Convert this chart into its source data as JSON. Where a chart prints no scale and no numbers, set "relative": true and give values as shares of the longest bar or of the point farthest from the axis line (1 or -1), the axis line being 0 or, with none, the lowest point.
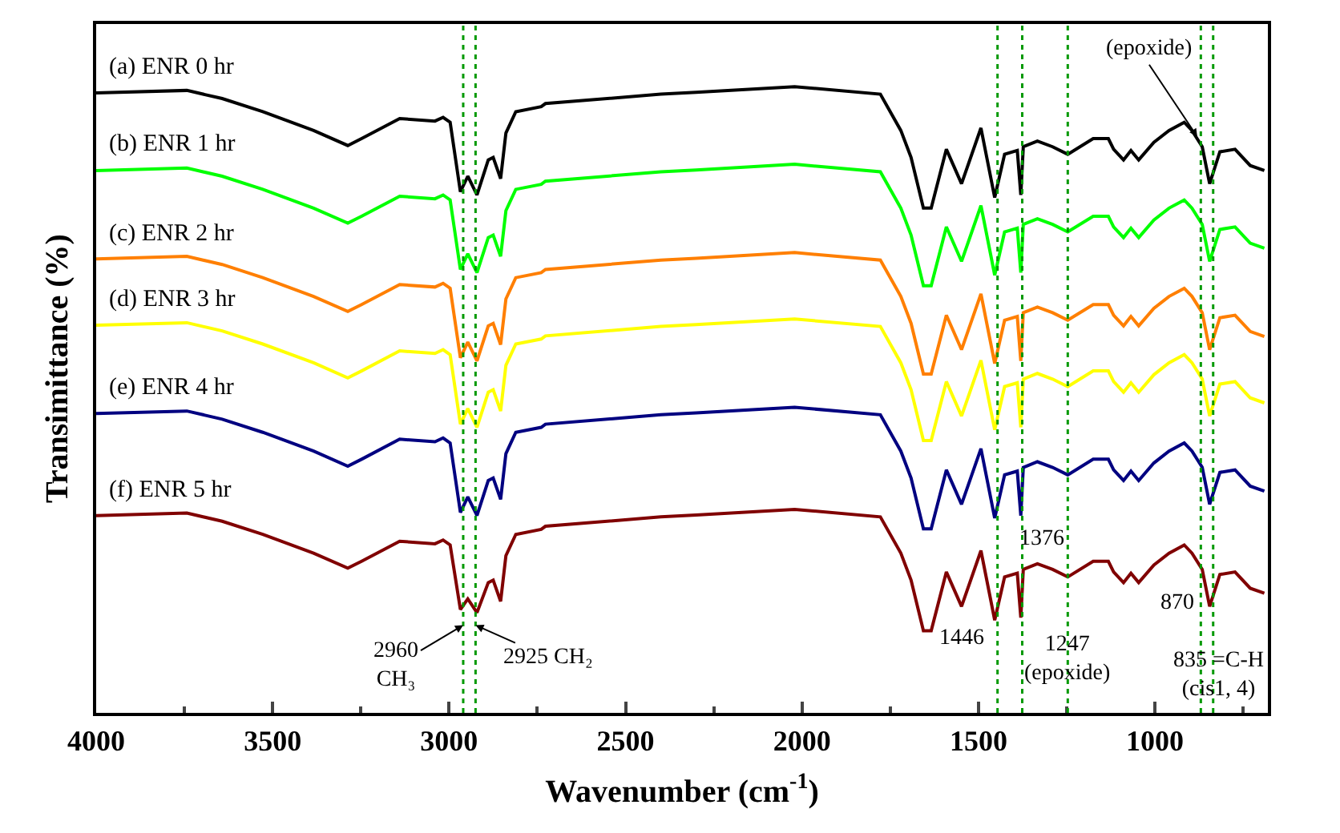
{
  "chart_data": {
    "type": "line",
    "relative": true,
    "xlabel": "Wavenumber (cm$^{-1}$)",
    "ylabel": "Transimittance (%)",
    "x": [
      4000,
      3743,
      3643,
      3528,
      3384,
      3287,
      3248,
      3140,
      3040,
      3017,
      2997,
      2968,
      2947,
      2921,
      2889,
      2875,
      2854,
      2839,
      2811,
      2739,
      2727,
      2400,
      2300,
      2021,
      1778,
      1720,
      1691,
      1656,
      1634,
      1591,
      1548,
      1493,
      1454,
      1426,
      1390,
      1380,
      1373,
      1333,
      1290,
      1247,
      1175,
      1132,
      1117,
      1089,
      1068,
      1046,
      1003,
      960,
      917,
      895,
      866,
      845,
      816,
      773,
      730,
      690
    ],
    "xlim": [
      4000,
      680
    ],
    "xticks": [
      4000,
      {
        "value": 3750,
        "label": null
      },
      3500,
      {
        "value": 3250,
        "label": null
      },
      3000,
      {
        "value": 2750,
        "label": null
      },
      2500,
      {
        "value": 2250,
        "label": null
      },
      2000,
      {
        "value": 1750,
        "label": null
      },
      1500,
      {
        "value": 1250,
        "label": null
      },
      1000,
      {
        "value": 750,
        "label": null
      }
    ],
    "legend": false,
    "line_style": "solid",
    "series": [
      {
        "name": "(a) ENR 0 hr",
        "color": "#000000",
        "values": [
          0.99,
          0.994,
          0.981,
          0.96,
          0.93,
          0.906,
          0.917,
          0.949,
          0.945,
          0.951,
          0.943,
          0.832,
          0.857,
          0.827,
          0.883,
          0.887,
          0.853,
          0.926,
          0.96,
          0.968,
          0.973,
          0.988,
          0.991,
          1.0,
          0.988,
          0.93,
          0.887,
          0.806,
          0.806,
          0.9,
          0.845,
          0.934,
          0.823,
          0.892,
          0.898,
          0.827,
          0.904,
          0.913,
          0.904,
          0.892,
          0.917,
          0.917,
          0.9,
          0.883,
          0.898,
          0.883,
          0.911,
          0.93,
          0.943,
          0.93,
          0.904,
          0.845,
          0.896,
          0.9,
          0.874,
          0.866
        ]
      },
      {
        "name": "(b) ENR 1 hr",
        "color": "#00ff00",
        "values": [
          0.866,
          0.87,
          0.857,
          0.836,
          0.806,
          0.782,
          0.793,
          0.825,
          0.821,
          0.827,
          0.819,
          0.708,
          0.733,
          0.703,
          0.759,
          0.763,
          0.729,
          0.802,
          0.836,
          0.844,
          0.849,
          0.864,
          0.867,
          0.876,
          0.864,
          0.806,
          0.763,
          0.682,
          0.682,
          0.776,
          0.721,
          0.81,
          0.699,
          0.768,
          0.774,
          0.703,
          0.78,
          0.789,
          0.78,
          0.768,
          0.793,
          0.793,
          0.776,
          0.759,
          0.774,
          0.759,
          0.787,
          0.806,
          0.819,
          0.806,
          0.78,
          0.721,
          0.772,
          0.776,
          0.75,
          0.742
        ]
      },
      {
        "name": "(c) ENR 2 hr",
        "color": "#ff7f00",
        "values": [
          0.725,
          0.729,
          0.716,
          0.695,
          0.665,
          0.641,
          0.652,
          0.684,
          0.68,
          0.686,
          0.678,
          0.567,
          0.592,
          0.562,
          0.618,
          0.622,
          0.588,
          0.661,
          0.695,
          0.703,
          0.708,
          0.723,
          0.726,
          0.735,
          0.723,
          0.665,
          0.622,
          0.541,
          0.541,
          0.635,
          0.58,
          0.669,
          0.558,
          0.627,
          0.633,
          0.562,
          0.639,
          0.648,
          0.639,
          0.627,
          0.652,
          0.652,
          0.635,
          0.618,
          0.633,
          0.618,
          0.646,
          0.665,
          0.678,
          0.665,
          0.639,
          0.58,
          0.631,
          0.635,
          0.609,
          0.601
        ]
      },
      {
        "name": "(d) ENR 3 hr",
        "color": "#ffff00",
        "values": [
          0.619,
          0.623,
          0.61,
          0.589,
          0.559,
          0.535,
          0.546,
          0.578,
          0.574,
          0.58,
          0.572,
          0.461,
          0.486,
          0.456,
          0.512,
          0.516,
          0.482,
          0.555,
          0.589,
          0.597,
          0.602,
          0.617,
          0.62,
          0.629,
          0.617,
          0.559,
          0.516,
          0.435,
          0.435,
          0.529,
          0.474,
          0.563,
          0.452,
          0.521,
          0.527,
          0.456,
          0.533,
          0.542,
          0.533,
          0.521,
          0.546,
          0.546,
          0.529,
          0.512,
          0.527,
          0.512,
          0.54,
          0.559,
          0.572,
          0.559,
          0.533,
          0.474,
          0.525,
          0.529,
          0.503,
          0.495
        ]
      },
      {
        "name": "(e) ENR 4 hr",
        "color": "#000080",
        "values": [
          0.478,
          0.482,
          0.469,
          0.448,
          0.418,
          0.394,
          0.405,
          0.437,
          0.433,
          0.439,
          0.431,
          0.32,
          0.345,
          0.315,
          0.371,
          0.375,
          0.341,
          0.414,
          0.448,
          0.456,
          0.461,
          0.476,
          0.479,
          0.488,
          0.476,
          0.418,
          0.375,
          0.294,
          0.294,
          0.388,
          0.333,
          0.422,
          0.311,
          0.38,
          0.386,
          0.315,
          0.392,
          0.401,
          0.392,
          0.38,
          0.405,
          0.405,
          0.388,
          0.371,
          0.386,
          0.371,
          0.399,
          0.418,
          0.431,
          0.418,
          0.392,
          0.333,
          0.384,
          0.388,
          0.362,
          0.354
        ]
      },
      {
        "name": "(f) ENR 5 hr",
        "color": "#800000",
        "values": [
          0.315,
          0.319,
          0.306,
          0.285,
          0.255,
          0.231,
          0.242,
          0.274,
          0.27,
          0.276,
          0.268,
          0.165,
          0.182,
          0.16,
          0.208,
          0.212,
          0.178,
          0.251,
          0.285,
          0.293,
          0.298,
          0.313,
          0.316,
          0.325,
          0.313,
          0.255,
          0.212,
          0.131,
          0.131,
          0.225,
          0.17,
          0.259,
          0.148,
          0.217,
          0.223,
          0.152,
          0.229,
          0.238,
          0.229,
          0.217,
          0.242,
          0.242,
          0.225,
          0.208,
          0.223,
          0.208,
          0.236,
          0.255,
          0.268,
          0.255,
          0.229,
          0.17,
          0.221,
          0.225,
          0.199,
          0.191
        ]
      }
    ],
    "ref_lines": [
      {
        "axis": "x",
        "value": 2960,
        "color": "#009900",
        "line_style": "dotted"
      },
      {
        "axis": "x",
        "value": 2925,
        "color": "#009900",
        "line_style": "dotted"
      },
      {
        "axis": "x",
        "value": 1446,
        "color": "#009900",
        "line_style": "dotted"
      },
      {
        "axis": "x",
        "value": 1376,
        "color": "#009900",
        "line_style": "dotted"
      },
      {
        "axis": "x",
        "value": 1247,
        "color": "#009900",
        "line_style": "dotted"
      },
      {
        "axis": "x",
        "value": 870,
        "color": "#009900",
        "line_style": "dotted"
      },
      {
        "axis": "x",
        "value": 835,
        "color": "#009900",
        "line_style": "dotted"
      }
    ],
    "annotations": [
      {
        "text": "(epoxide)",
        "x": 880,
        "y": 0.92
      },
      {
        "text": "2960\nCH₃",
        "x": 2960,
        "y": 0.14
      },
      {
        "text": "2925 CH₂",
        "x": 2925,
        "y": 0.14
      },
      {
        "text": "1446",
        "x": 1446,
        "y": 0.118
      },
      {
        "text": "1376",
        "x": 1376,
        "y": 0.277
      },
      {
        "text": "1247\n(epoxide)",
        "x": 1247,
        "y": 0.085
      },
      {
        "text": "870",
        "x": 870,
        "y": 0.174
      },
      {
        "text": "835 =C-H\n(cis1, 4)",
        "x": 835,
        "y": 0.06
      }
    ]
  }
}
